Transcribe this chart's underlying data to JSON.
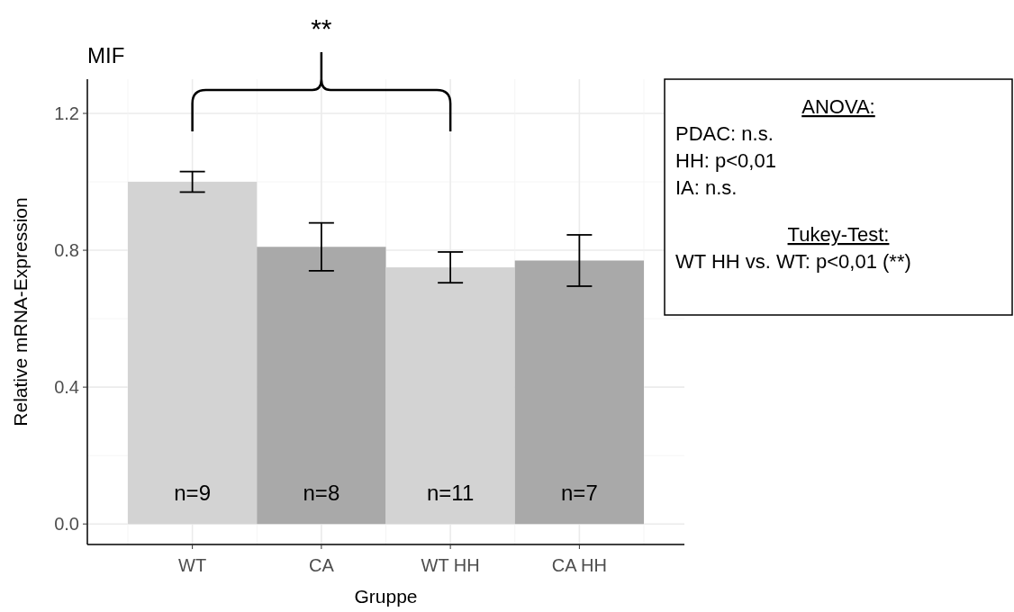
{
  "chart_data": {
    "type": "bar",
    "title": "MIF",
    "xlabel": "Gruppe",
    "ylabel": "Relative mRNA-Expression",
    "categories": [
      "WT",
      "CA",
      "WT HH",
      "CA HH"
    ],
    "values": [
      1.0,
      0.81,
      0.75,
      0.77
    ],
    "errors": [
      0.03,
      0.07,
      0.045,
      0.075
    ],
    "colors": [
      "#d3d3d3",
      "#a9a9a9",
      "#d3d3d3",
      "#a9a9a9"
    ],
    "ylim": [
      -0.06,
      1.3
    ],
    "yticks": [
      {
        "value": 0,
        "label": "0.0"
      },
      {
        "value": 0.4,
        "label": "0.4"
      },
      {
        "value": 0.8,
        "label": "0.8"
      },
      {
        "value": 1.2,
        "label": "1.2"
      }
    ],
    "grid": true,
    "annotations": [
      "**",
      "n=9",
      "n=8",
      "n=11",
      "n=7",
      "ANOVA:",
      "PDAC: n.s.",
      "HH: p<0,01",
      "IA: n.s.",
      "Tukey-Test:",
      "WT HH vs. WT: p<0,01 (**)"
    ]
  }
}
